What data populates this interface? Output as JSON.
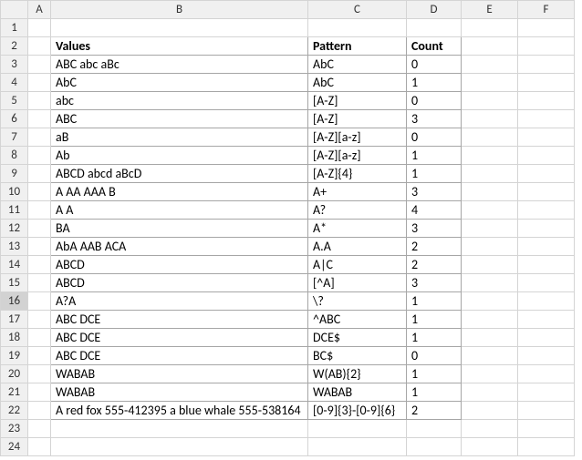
{
  "columns": [
    "A",
    "B",
    "C",
    "D",
    "E",
    "F"
  ],
  "row_count": 24,
  "selected_row": 16,
  "headers": {
    "b": "Values",
    "c": "Pattern",
    "d": "Count"
  },
  "data_rows": [
    {
      "b": "ABC abc aBc",
      "c": "AbC",
      "d": "0"
    },
    {
      "b": "AbC",
      "c": "AbC",
      "d": "1"
    },
    {
      "b": "abc",
      "c": "[A-Z]",
      "d": "0"
    },
    {
      "b": "ABC",
      "c": "[A-Z]",
      "d": "3"
    },
    {
      "b": "aB",
      "c": "[A-Z][a-z]",
      "d": "0"
    },
    {
      "b": "Ab",
      "c": "[A-Z][a-z]",
      "d": "1"
    },
    {
      "b": "ABCD abcd aBcD",
      "c": "[A-Z]{4}",
      "d": "1"
    },
    {
      "b": " A AA AAA B",
      "c": "A+",
      "d": "3"
    },
    {
      "b": "A A",
      "c": "A?",
      "d": "4"
    },
    {
      "b": "BA",
      "c": "A*",
      "d": "3"
    },
    {
      "b": "AbA AAB ACA",
      "c": "A.A",
      "d": "2"
    },
    {
      "b": "ABCD",
      "c": "A|C",
      "d": "2"
    },
    {
      "b": "ABCD",
      "c": "[^A]",
      "d": "3"
    },
    {
      "b": "A?A",
      "c": "\\?",
      "d": "1"
    },
    {
      "b": "ABC DCE",
      "c": "^ABC",
      "d": "1"
    },
    {
      "b": "ABC DCE",
      "c": "DCE$",
      "d": "1"
    },
    {
      "b": "ABC DCE",
      "c": "BC$",
      "d": "0"
    },
    {
      "b": "WABAB",
      "c": "W(AB){2}",
      "d": "1"
    },
    {
      "b": "WABAB",
      "c": "WABAB",
      "d": "1"
    },
    {
      "b": "A red fox 555-412395 a blue whale 555-538164",
      "c": "[0-9]{3}-[0-9]{6}",
      "d": "2"
    }
  ]
}
